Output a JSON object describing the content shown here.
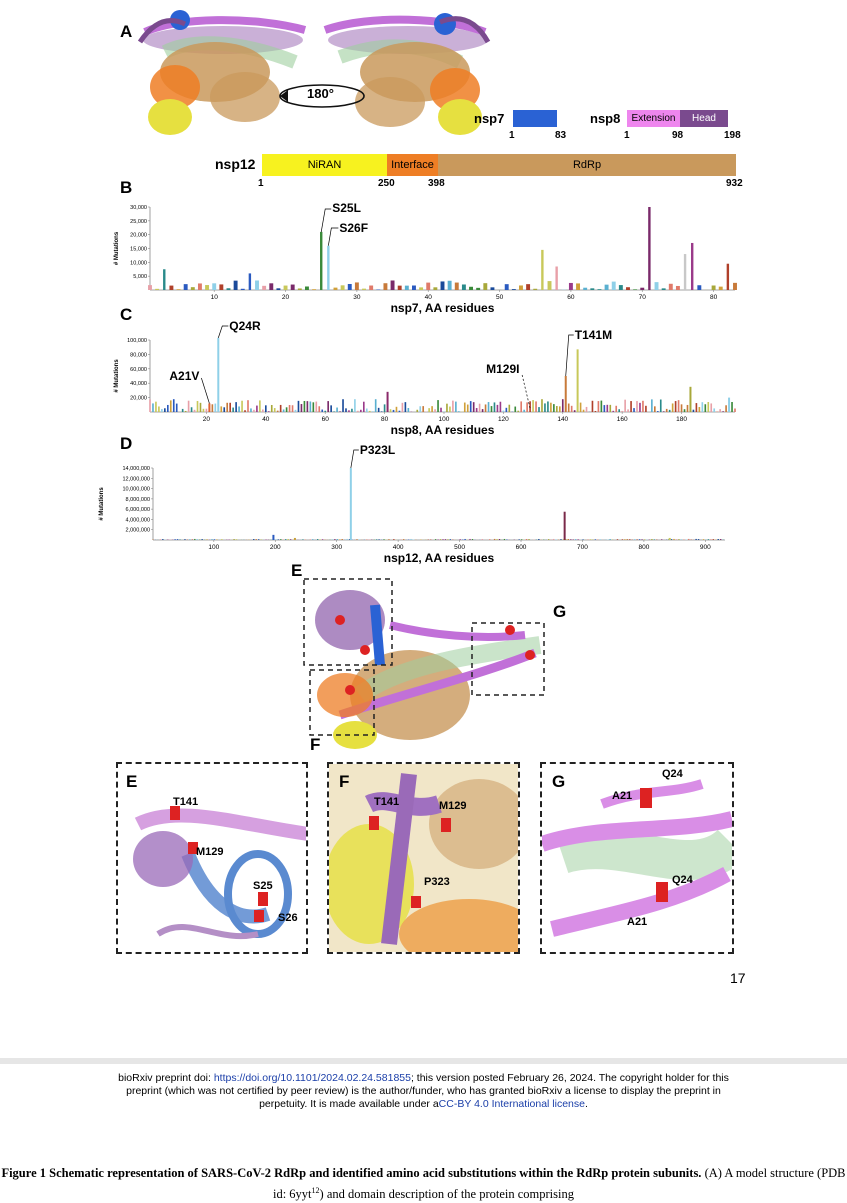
{
  "panels": {
    "A": "A",
    "B": "B",
    "C": "C",
    "D": "D",
    "E": "E",
    "F": "F",
    "G": "G"
  },
  "rotation_label": "180°",
  "domains": {
    "nsp7": {
      "name": "nsp7",
      "start": "1",
      "end": "83",
      "color": "#2a62d4"
    },
    "nsp8": {
      "name": "nsp8",
      "start": "1",
      "mid": "98",
      "end": "198",
      "extension": "Extension",
      "head": "Head",
      "ext_color": "#ee86ee",
      "head_color": "#7a4a8e"
    },
    "nsp12": {
      "name": "nsp12",
      "niran": "NiRAN",
      "interface": "Interface",
      "rdrp": "RdRp",
      "t1": "1",
      "t2": "250",
      "t3": "398",
      "t4": "932",
      "niran_color": "#f7f21f",
      "interface_color": "#ee7e25",
      "rdrp_color": "#c9995c"
    }
  },
  "chart_data": [
    {
      "type": "bar",
      "panel": "B",
      "xlabel": "nsp7, AA residues",
      "ylabel": "# Mutations",
      "xlim": [
        1,
        83
      ],
      "ylim": [
        0,
        30000
      ],
      "xticks": [
        "10",
        "20",
        "30",
        "40",
        "50",
        "60",
        "70",
        "80"
      ],
      "yticks": [
        "30,000",
        "25,000",
        "20,000",
        "15,000",
        "10,000",
        "5,000"
      ],
      "annotations": [
        {
          "label": "S25L",
          "x": 25
        },
        {
          "label": "S26F",
          "x": 26
        }
      ],
      "highlights": [
        {
          "x": 3,
          "value": 7500,
          "color": "#2a8a8a"
        },
        {
          "x": 25,
          "value": 21000,
          "color": "#3a8a3a"
        },
        {
          "x": 26,
          "value": 16000,
          "color": "#8fd0e8"
        },
        {
          "x": 56,
          "value": 14500,
          "color": "#c8c85a"
        },
        {
          "x": 71,
          "value": 30000,
          "color": "#7a2a6a"
        },
        {
          "x": 76,
          "value": 13000,
          "color": "#c8c8c8"
        },
        {
          "x": 77,
          "value": 17000,
          "color": "#9a3a8a"
        },
        {
          "x": 82,
          "value": 9500,
          "color": "#b0402a"
        },
        {
          "x": 58,
          "value": 8500,
          "color": "#e8a0a8"
        },
        {
          "x": 15,
          "value": 6000,
          "color": "#2a5ac0"
        }
      ]
    },
    {
      "type": "bar",
      "panel": "C",
      "xlabel": "nsp8, AA residues",
      "ylabel": "# Mutations",
      "xlim": [
        1,
        198
      ],
      "ylim": [
        0,
        100000
      ],
      "xticks": [
        "20",
        "40",
        "60",
        "80",
        "100",
        "120",
        "140",
        "160",
        "180"
      ],
      "yticks": [
        "100,000",
        "80,000",
        "60,000",
        "40,000",
        "20,000"
      ],
      "annotations": [
        {
          "label": "A21V",
          "x": 21
        },
        {
          "label": "Q24R",
          "x": 24
        },
        {
          "label": "M129I",
          "x": 129
        },
        {
          "label": "T141M",
          "x": 141
        }
      ],
      "highlights": [
        {
          "x": 24,
          "value": 103000,
          "color": "#8fd0e8"
        },
        {
          "x": 141,
          "value": 50000,
          "color": "#c87a3a"
        },
        {
          "x": 145,
          "value": 87000,
          "color": "#c8c85a"
        },
        {
          "x": 81,
          "value": 28000,
          "color": "#8a2a6a"
        },
        {
          "x": 183,
          "value": 35000,
          "color": "#a8a83a"
        },
        {
          "x": 196,
          "value": 20000,
          "color": "#8fd0e8"
        },
        {
          "x": 21,
          "value": 12000,
          "color": "#e06030"
        }
      ]
    },
    {
      "type": "bar",
      "panel": "D",
      "xlabel": "nsp12, AA residues",
      "ylabel": "# Mutations",
      "xlim": [
        1,
        932
      ],
      "ylim": [
        0,
        14000000
      ],
      "xticks": [
        "100",
        "200",
        "300",
        "400",
        "500",
        "600",
        "700",
        "800",
        "900"
      ],
      "yticks": [
        "14,000,000",
        "12,000,000",
        "10,000,000",
        "8,000,000",
        "6,000,000",
        "4,000,000",
        "2,000,000"
      ],
      "annotations": [
        {
          "label": "P323L",
          "x": 323
        }
      ],
      "highlights": [
        {
          "x": 323,
          "value": 14000000,
          "color": "#8fd0e8"
        },
        {
          "x": 671,
          "value": 5500000,
          "color": "#7a2a4a"
        },
        {
          "x": 197,
          "value": 1000000,
          "color": "#2a5ac0"
        },
        {
          "x": 232,
          "value": 400000,
          "color": "#c8a03a"
        },
        {
          "x": 842,
          "value": 400000,
          "color": "#c8c85a"
        }
      ]
    }
  ],
  "zoom_labels": {
    "E": [
      "T141",
      "M129",
      "S25",
      "S26"
    ],
    "F": [
      "T141",
      "M129",
      "P323"
    ],
    "G": [
      "A21",
      "Q24",
      "Q24",
      "A21"
    ]
  },
  "page_number": "17",
  "footer": {
    "line1_pre": "bioRxiv preprint doi: ",
    "doi": "https://doi.org/10.1101/2024.02.24.581855",
    "line1_post": "; this version posted February 26, 2024. The copyright holder for this",
    "line2": "preprint (which was not certified by peer review) is the author/funder, who has granted bioRxiv a license to display the preprint in",
    "line3_pre": "perpetuity. It is made available under a",
    "license": "CC-BY 4.0 International license",
    "line3_post": "."
  },
  "caption": {
    "bold": "Figure 1 Schematic representation of SARS-CoV-2 RdRp and identified amino acid substitutions within the RdRp protein subunits.",
    "text": " (A) A model structure (PDB id: 6yyt",
    "sup": "12",
    "text2": ") and domain description of the protein comprising"
  }
}
